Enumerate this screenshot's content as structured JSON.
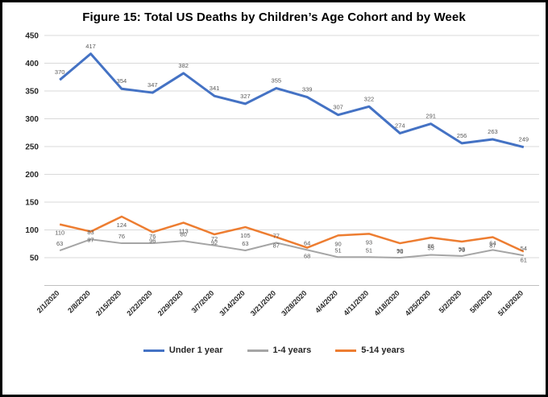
{
  "chart_data": {
    "type": "line",
    "title": "Figure 15: Total US Deaths by Children’s Age Cohort and by Week",
    "categories": [
      "2/1/2020",
      "2/8/2020",
      "2/15/2020",
      "2/22/2020",
      "2/29/2020",
      "3/7/2020",
      "3/14/2020",
      "3/21/2020",
      "3/28/2020",
      "4/4/2020",
      "4/11/2020",
      "4/18/2020",
      "4/25/2020",
      "5/2/2020",
      "5/9/2020",
      "5/16/2020"
    ],
    "series": [
      {
        "name": "Under 1 year",
        "color": "#4472C4",
        "stroke_width": 3,
        "label_side": "above",
        "label_dy": -7,
        "values": [
          370,
          417,
          354,
          347,
          382,
          341,
          327,
          355,
          339,
          307,
          322,
          274,
          291,
          256,
          263,
          249
        ]
      },
      {
        "name": "1-4 years",
        "color": "#A5A5A5",
        "stroke_width": 2,
        "label_side": "above",
        "label_dy": -6,
        "values": [
          63,
          83,
          76,
          76,
          80,
          72,
          63,
          77,
          64,
          51,
          51,
          50,
          55,
          53,
          64,
          54
        ]
      },
      {
        "name": "5-14 years",
        "color": "#ED7D31",
        "stroke_width": 2.5,
        "label_side": "below",
        "label_dy": 13,
        "values": [
          110,
          97,
          124,
          96,
          113,
          92,
          105,
          87,
          68,
          90,
          93,
          76,
          86,
          79,
          87,
          61
        ]
      }
    ],
    "ylim": [
      0,
      450
    ],
    "yticks": [
      "450",
      "400",
      "350",
      "300",
      "250",
      "200",
      "150",
      "100",
      "50"
    ],
    "grid": true,
    "grid_color": "#D9D9D9",
    "axis_color": "#BFBFBF",
    "data_label_color": "#595959",
    "legend_position": "bottom"
  }
}
